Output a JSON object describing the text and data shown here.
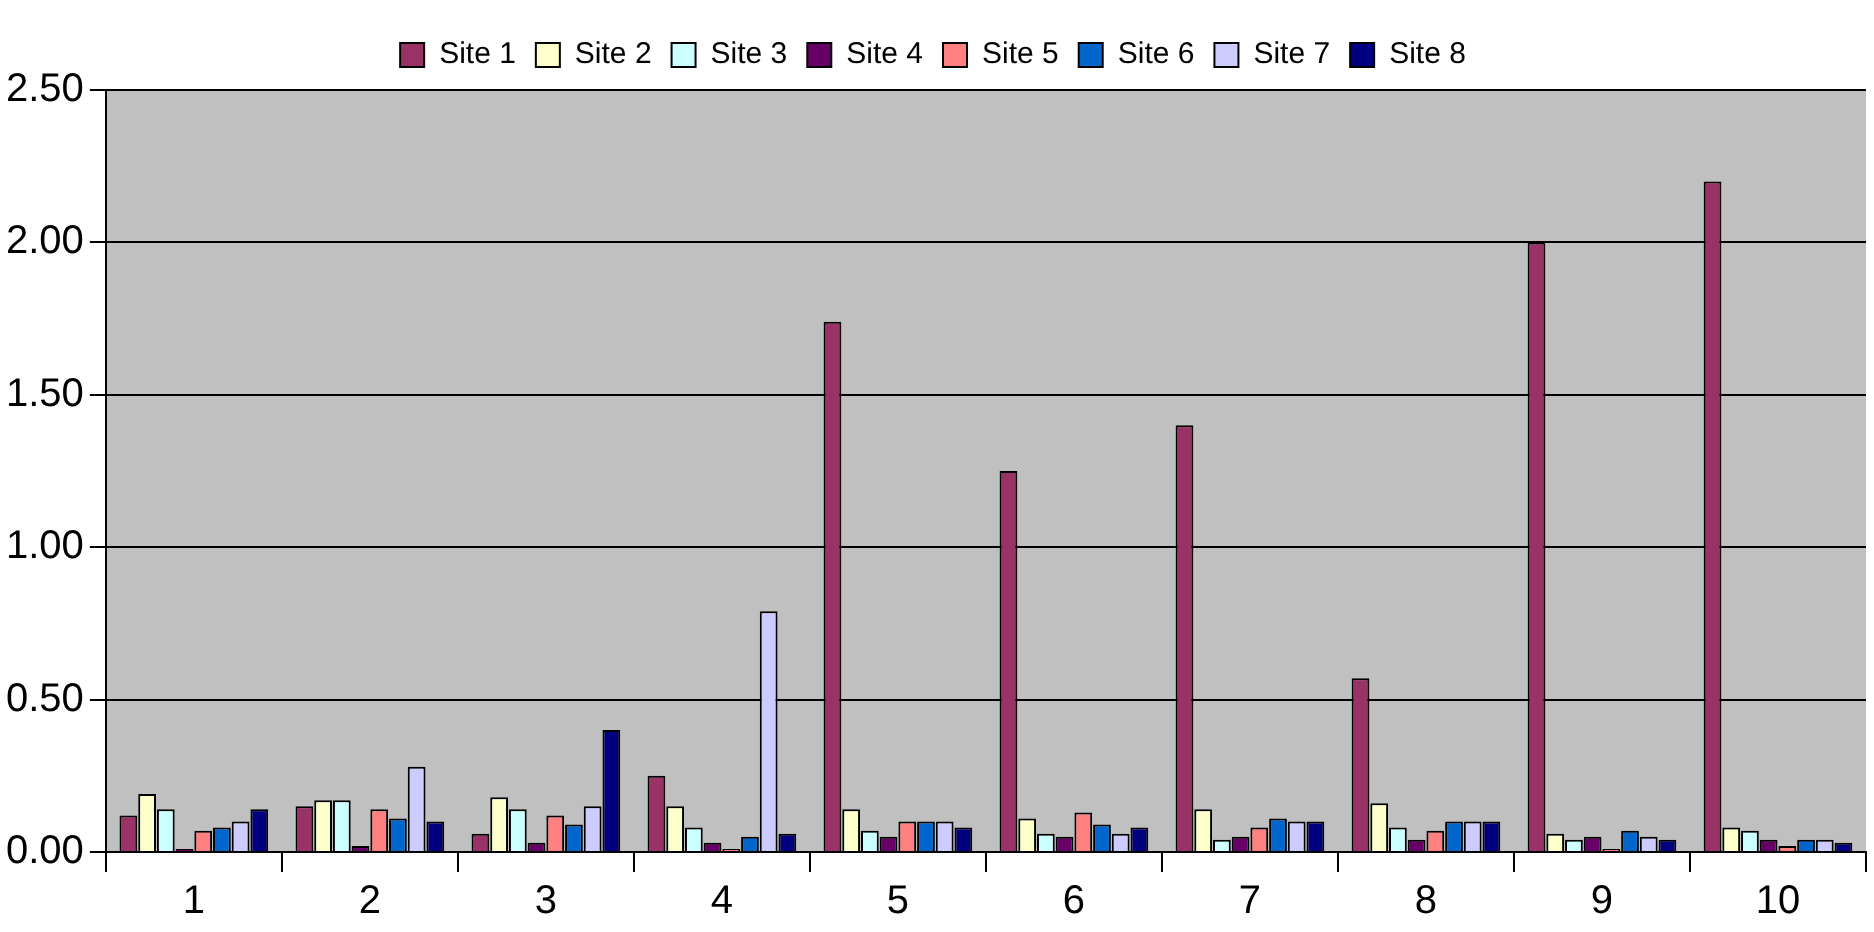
{
  "chart_data": {
    "type": "bar",
    "categories": [
      "1",
      "2",
      "3",
      "4",
      "5",
      "6",
      "7",
      "8",
      "9",
      "10"
    ],
    "series": [
      {
        "name": "Site 1",
        "color": "#993366",
        "values": [
          0.12,
          0.15,
          0.06,
          0.25,
          1.74,
          1.25,
          1.4,
          0.57,
          2.0,
          2.2
        ]
      },
      {
        "name": "Site 2",
        "color": "#ffffcc",
        "values": [
          0.19,
          0.17,
          0.18,
          0.15,
          0.14,
          0.11,
          0.14,
          0.16,
          0.06,
          0.08
        ]
      },
      {
        "name": "Site 3",
        "color": "#ccffff",
        "values": [
          0.14,
          0.17,
          0.14,
          0.08,
          0.07,
          0.06,
          0.04,
          0.08,
          0.04,
          0.07
        ]
      },
      {
        "name": "Site 4",
        "color": "#660066",
        "values": [
          0.01,
          0.02,
          0.03,
          0.03,
          0.05,
          0.05,
          0.05,
          0.04,
          0.05,
          0.04
        ]
      },
      {
        "name": "Site 5",
        "color": "#ff8080",
        "values": [
          0.07,
          0.14,
          0.12,
          0.01,
          0.1,
          0.13,
          0.08,
          0.07,
          0.01,
          0.02
        ]
      },
      {
        "name": "Site 6",
        "color": "#0066cc",
        "values": [
          0.08,
          0.11,
          0.09,
          0.05,
          0.1,
          0.09,
          0.11,
          0.1,
          0.07,
          0.04
        ]
      },
      {
        "name": "Site 7",
        "color": "#ccccff",
        "values": [
          0.1,
          0.28,
          0.15,
          0.79,
          0.1,
          0.06,
          0.1,
          0.1,
          0.05,
          0.04
        ]
      },
      {
        "name": "Site 8",
        "color": "#000080",
        "values": [
          0.14,
          0.1,
          0.4,
          0.06,
          0.08,
          0.08,
          0.1,
          0.1,
          0.04,
          0.03
        ]
      }
    ],
    "ylim": [
      0,
      2.5
    ],
    "yticks": [
      {
        "value": 0,
        "label": "0.00"
      },
      {
        "value": 0.5,
        "label": "0.50"
      },
      {
        "value": 1,
        "label": "1.00"
      },
      {
        "value": 1.5,
        "label": "1.50"
      },
      {
        "value": 2,
        "label": "2.00"
      },
      {
        "value": 2.5,
        "label": "2.50"
      }
    ],
    "grid": "y",
    "legend": "top"
  }
}
